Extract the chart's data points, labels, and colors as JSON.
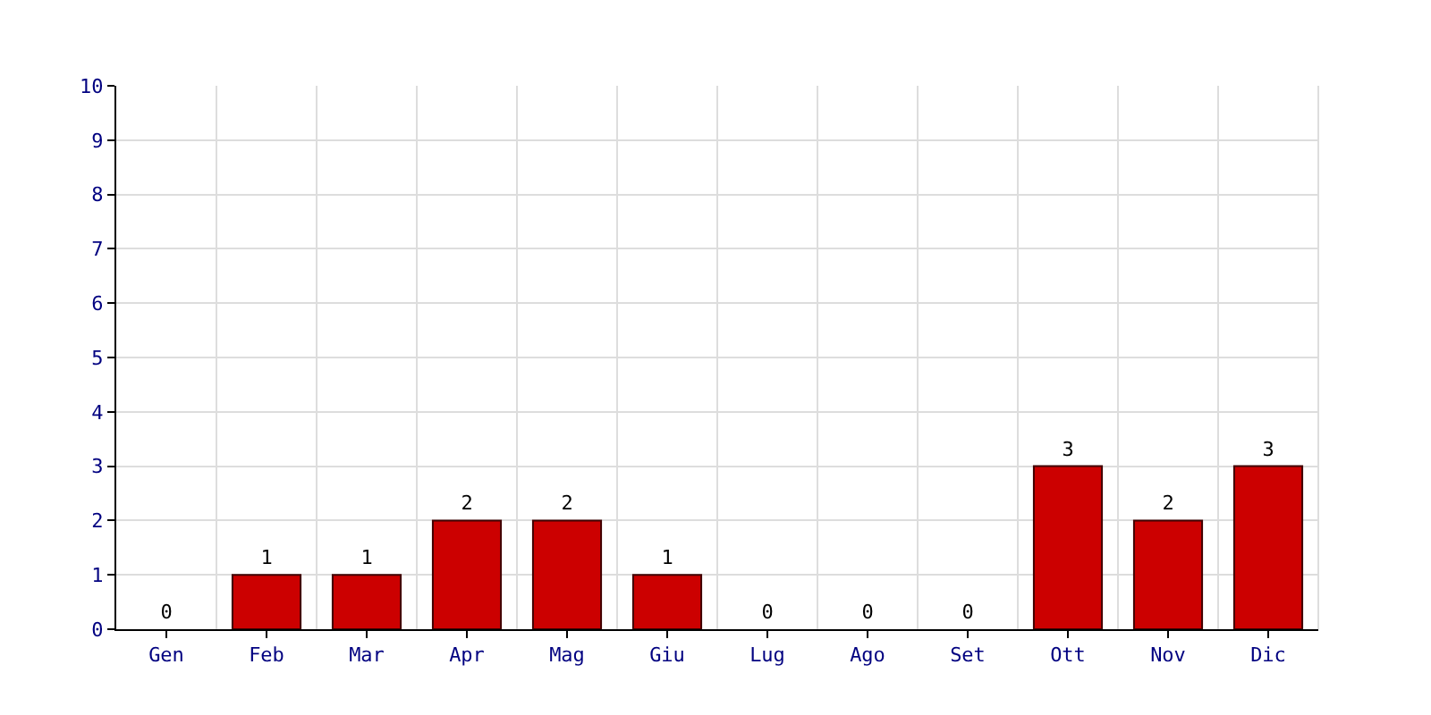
{
  "chart_data": {
    "type": "bar",
    "categories": [
      "Gen",
      "Feb",
      "Mar",
      "Apr",
      "Mag",
      "Giu",
      "Lug",
      "Ago",
      "Set",
      "Ott",
      "Nov",
      "Dic"
    ],
    "values": [
      0,
      1,
      1,
      2,
      2,
      1,
      0,
      0,
      0,
      3,
      2,
      3
    ],
    "color": "#cc0000",
    "ylim": [
      0,
      10
    ],
    "yticks": [
      0,
      1,
      2,
      3,
      4,
      5,
      6,
      7,
      8,
      9,
      10
    ],
    "grid": true,
    "data_labels": true,
    "legend": false
  }
}
